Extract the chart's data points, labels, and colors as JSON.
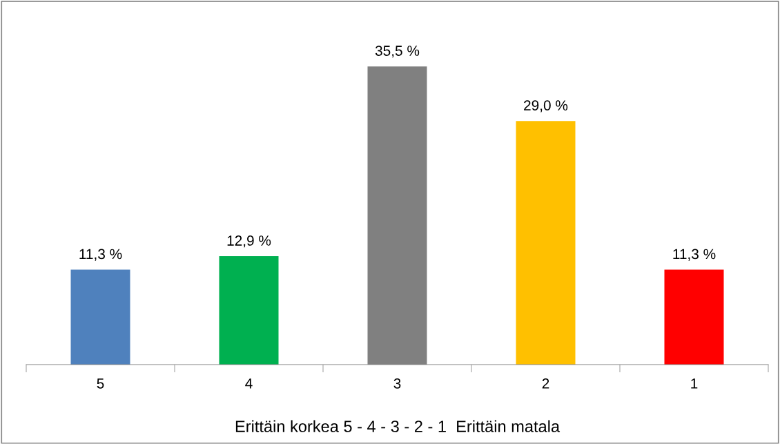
{
  "chart_data": {
    "type": "bar",
    "xlabel": "Erittäin korkea 5 - 4 - 3 - 2 - 1  Erittäin matala",
    "categories": [
      "5",
      "4",
      "3",
      "2",
      "1"
    ],
    "values": [
      11.3,
      12.9,
      35.5,
      29.0,
      11.3
    ],
    "colors": [
      "#4f81bd",
      "#00b050",
      "#808080",
      "#ffc000",
      "#ff0000"
    ],
    "value_labels": [
      "11,3 %",
      "12,9 %",
      "35,5 %",
      "29,0 %",
      "11,3 %"
    ],
    "tick_labels": "x",
    "grid": false,
    "legend": false
  }
}
